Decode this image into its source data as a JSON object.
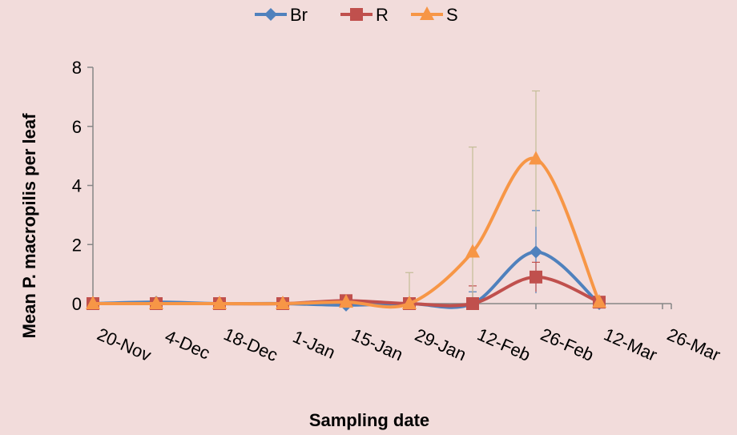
{
  "chart_data": {
    "type": "line",
    "xlabel": "Sampling date",
    "ylabel": "Mean P. macropilis per leaf",
    "ylim": [
      0,
      8
    ],
    "yticks": [
      0,
      2,
      4,
      6,
      8
    ],
    "x_tick_labels": [
      "20-Nov",
      "4-Dec",
      "18-Dec",
      "1-Jan",
      "15-Jan",
      "29-Jan",
      "12-Feb",
      "26-Feb",
      "12-Mar",
      "26-Mar"
    ],
    "x": [
      "20-Nov",
      "4-Dec",
      "18-Dec",
      "1-Jan",
      "15-Jan",
      "29-Jan",
      "12-Feb",
      "26-Feb",
      "12-Mar"
    ],
    "grid": false,
    "smooth": true,
    "legend": "top-center",
    "series": [
      {
        "name": "Br",
        "color": "#4f81bd",
        "marker": "diamond",
        "values": [
          0,
          0.05,
          0,
          0,
          -0.05,
          0,
          0,
          1.75,
          0
        ],
        "error": [
          0,
          0,
          0,
          0,
          0,
          0,
          0.4,
          1.4,
          0
        ]
      },
      {
        "name": "R",
        "color": "#c0504d",
        "marker": "square",
        "values": [
          0,
          0,
          0,
          0,
          0.1,
          0,
          0,
          0.9,
          0.05
        ],
        "error": [
          0,
          0,
          0,
          0,
          0,
          0,
          0.6,
          0.5,
          0
        ]
      },
      {
        "name": "S",
        "color": "#f79646",
        "marker": "triangle",
        "values": [
          0,
          0,
          0,
          0,
          0.05,
          0,
          1.75,
          4.9,
          0.05
        ],
        "error": [
          0,
          0,
          0,
          0,
          0,
          1.05,
          3.55,
          2.3,
          0
        ]
      }
    ]
  }
}
